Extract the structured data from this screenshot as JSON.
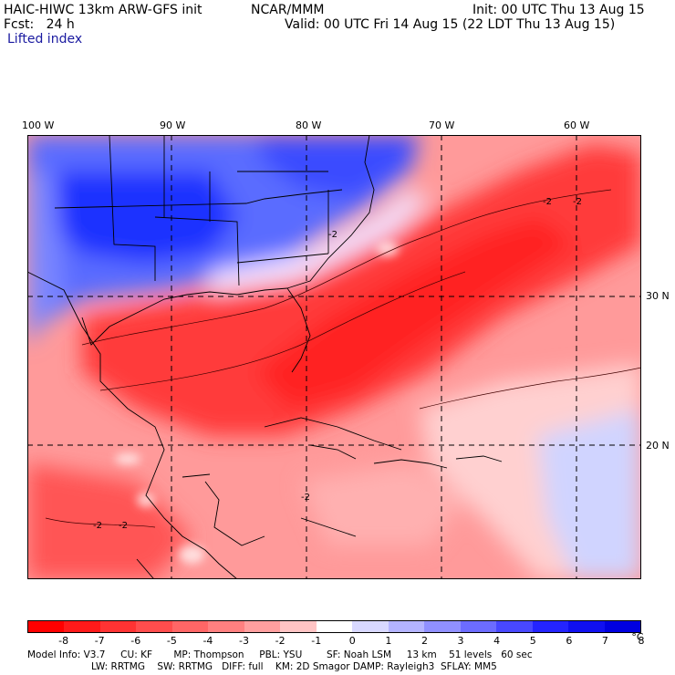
{
  "header": {
    "model": "HAIC-HIWC 13km ARW-GFS init",
    "org": "NCAR/MMM",
    "init": "Init: 00 UTC Thu 13 Aug 15",
    "fcst": "Fcst:   24 h",
    "valid": "Valid: 00 UTC Fri 14 Aug 15 (22 LDT Thu 13 Aug 15)",
    "field": "Lifted index"
  },
  "lon_labels": [
    "100 W",
    "90 W",
    "80 W",
    "70 W",
    "60 W"
  ],
  "lat_labels": [
    "30 N",
    "20 N"
  ],
  "colorbar": {
    "labels": [
      "-8",
      "-7",
      "-6",
      "-5",
      "-4",
      "-3",
      "-2",
      "-1",
      "0",
      "1",
      "2",
      "3",
      "4",
      "5",
      "6",
      "7",
      "8",
      "°C"
    ],
    "colors": [
      "#ff0000",
      "#ff1a1a",
      "#ff3333",
      "#ff4d4d",
      "#ff6666",
      "#ff8080",
      "#ff9f9f",
      "#ffc4c4",
      "#ffffff",
      "#d8d8ff",
      "#b4b4ff",
      "#9090ff",
      "#6c6cff",
      "#4848ff",
      "#2424ff",
      "#1010f0",
      "#0000e0"
    ]
  },
  "contour_labels": [
    "-2",
    "-2",
    "-2",
    "-2",
    "-2",
    "-2"
  ],
  "footer": {
    "line1": "Model Info: V3.7     CU: KF       MP: Thompson     PBL: YSU        SF: Noah LSM     13 km    51 levels   60 sec",
    "line2": "LW: RRTMG    SW: RRTMG   DIFF: full    KM: 2D Smagor DAMP: Rayleigh3  SFLAY: MM5"
  }
}
